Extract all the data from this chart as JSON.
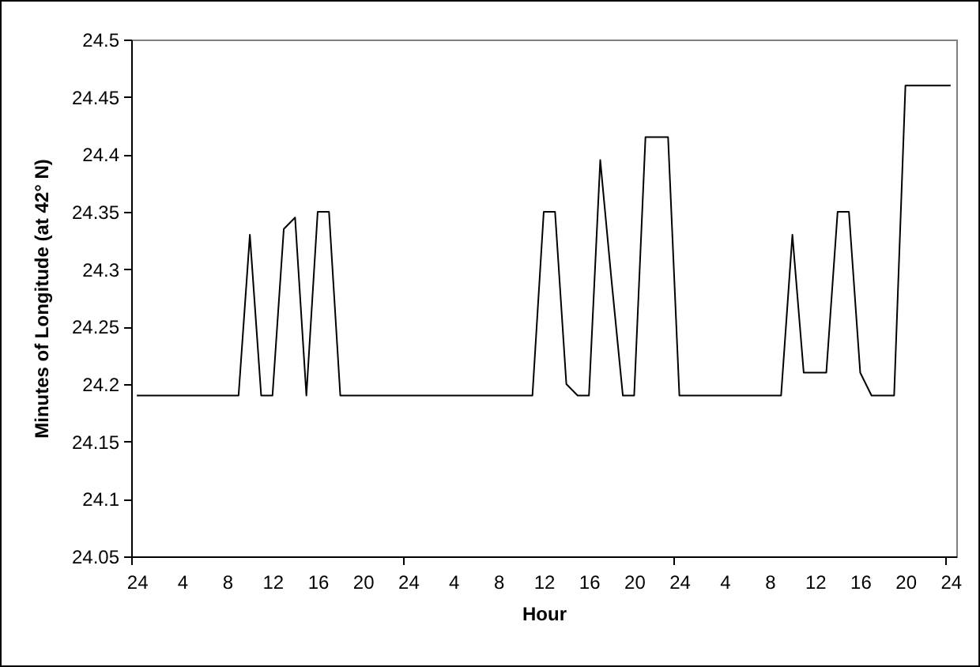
{
  "chart_data": {
    "type": "line",
    "xlabel": "Hour",
    "ylabel": "Minutes of Longitude (at 42° N)",
    "categories": [
      "24",
      null,
      null,
      null,
      "4",
      null,
      null,
      null,
      "8",
      null,
      null,
      null,
      "12",
      null,
      null,
      null,
      "16",
      null,
      null,
      null,
      "20",
      null,
      null,
      null,
      "24",
      null,
      null,
      null,
      "4",
      null,
      null,
      null,
      "8",
      null,
      null,
      null,
      "12",
      null,
      null,
      null,
      "16",
      null,
      null,
      null,
      "20",
      null,
      null,
      null,
      "24",
      null,
      null,
      null,
      "4",
      null,
      null,
      null,
      "8",
      null,
      null,
      null,
      "12",
      null,
      null,
      null,
      "16",
      null,
      null,
      null,
      "20",
      null,
      null,
      null,
      "24"
    ],
    "values": [
      24.19,
      24.19,
      24.19,
      24.19,
      24.19,
      24.19,
      24.19,
      24.19,
      24.19,
      24.19,
      24.33,
      24.19,
      24.19,
      24.335,
      24.345,
      24.19,
      24.35,
      24.35,
      24.19,
      24.19,
      24.19,
      24.19,
      24.19,
      24.19,
      24.19,
      24.19,
      24.19,
      24.19,
      24.19,
      24.19,
      24.19,
      24.19,
      24.19,
      24.19,
      24.19,
      24.19,
      24.35,
      24.35,
      24.2,
      24.19,
      24.19,
      24.395,
      24.29,
      24.19,
      24.19,
      24.415,
      24.415,
      24.415,
      24.19,
      24.19,
      24.19,
      24.19,
      24.19,
      24.19,
      24.19,
      24.19,
      24.19,
      24.19,
      24.33,
      24.21,
      24.21,
      24.21,
      24.35,
      24.35,
      24.21,
      24.19,
      24.19,
      24.19,
      24.46,
      24.46,
      24.46,
      24.46,
      24.46
    ],
    "color": "#000000",
    "ylim": [
      24.05,
      24.5
    ],
    "yticks": [
      24.05,
      24.1,
      24.15,
      24.2,
      24.25,
      24.3,
      24.35,
      24.4,
      24.45,
      24.5
    ],
    "line_style": "solid"
  }
}
